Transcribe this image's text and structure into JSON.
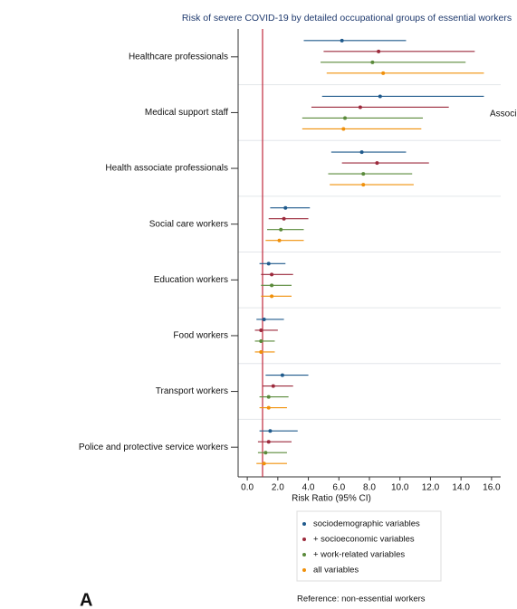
{
  "chart_data": {
    "type": "forest",
    "title": "Risk of severe COVID-19 by detailed occupational groups of essential workers",
    "x_label": "Risk Ratio (95% CI)",
    "categories": [
      "Healthcare professionals",
      "Medical support staff",
      "Health associate professionals",
      "Social care workers",
      "Education workers",
      "Food workers",
      "Transport workers",
      "Police and protective service workers"
    ],
    "series": [
      {
        "name": "sociodemographic variables",
        "color": "#1f5a8c",
        "values": [
          6.2,
          8.7,
          7.5,
          2.5,
          1.4,
          1.1,
          2.3,
          1.5
        ],
        "lower": [
          3.7,
          4.9,
          5.5,
          1.5,
          0.8,
          0.6,
          1.2,
          0.8
        ],
        "upper": [
          10.4,
          15.5,
          10.4,
          4.1,
          2.5,
          2.4,
          4.0,
          3.3
        ]
      },
      {
        "name": "+ socioeconomic variables",
        "color": "#9c2a3c",
        "values": [
          8.6,
          7.4,
          8.5,
          2.4,
          1.6,
          0.9,
          1.7,
          1.4
        ],
        "lower": [
          5.0,
          4.2,
          6.2,
          1.4,
          0.9,
          0.5,
          1.0,
          0.7
        ],
        "upper": [
          14.9,
          13.2,
          11.9,
          4.0,
          3.0,
          2.0,
          3.0,
          2.9
        ]
      },
      {
        "name": "+ work-related variables",
        "color": "#5a8a3a",
        "values": [
          8.2,
          6.4,
          7.6,
          2.2,
          1.6,
          0.9,
          1.4,
          1.2
        ],
        "lower": [
          4.8,
          3.6,
          5.3,
          1.3,
          0.9,
          0.5,
          0.8,
          0.7
        ],
        "upper": [
          14.3,
          11.5,
          10.8,
          3.7,
          2.9,
          1.8,
          2.7,
          2.6
        ]
      },
      {
        "name": "all variables",
        "color": "#f0900a",
        "values": [
          8.9,
          6.3,
          7.6,
          2.1,
          1.6,
          0.9,
          1.4,
          1.1
        ],
        "lower": [
          5.2,
          3.6,
          5.4,
          1.2,
          0.9,
          0.5,
          0.8,
          0.6
        ],
        "upper": [
          15.5,
          11.4,
          10.9,
          3.7,
          2.9,
          1.8,
          2.6,
          2.6
        ]
      }
    ],
    "xlim": [
      -0.6,
      16.6
    ],
    "xticks": [
      {
        "value": 0,
        "label": "0.0"
      },
      {
        "value": 2,
        "label": "2.0"
      },
      {
        "value": 4,
        "label": "4.0"
      },
      {
        "value": 6,
        "label": "6.0"
      },
      {
        "value": 8,
        "label": "8.0"
      },
      {
        "value": 10,
        "label": "10.0"
      },
      {
        "value": 12,
        "label": "12.0"
      },
      {
        "value": 14,
        "label": "14.0"
      },
      {
        "value": 16,
        "label": "16.0"
      }
    ],
    "reference_line": 1,
    "reference_color": "#c0283c",
    "reference_label": "Reference: non-essential workers",
    "annotation": "Associ",
    "panel_label": "A"
  }
}
